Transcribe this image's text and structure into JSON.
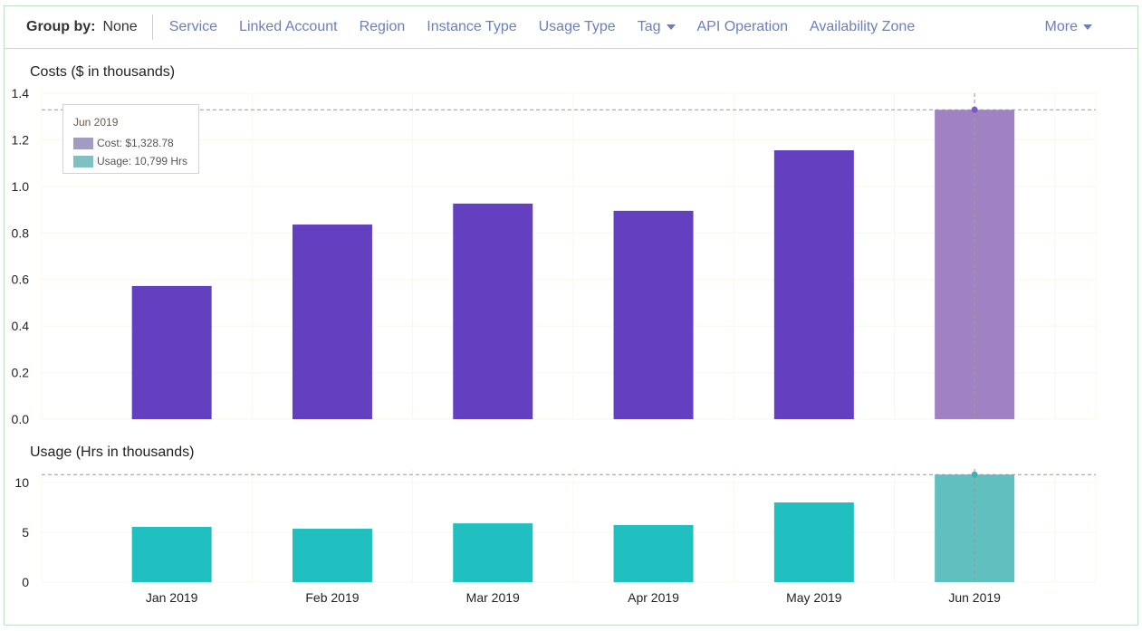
{
  "toolbar": {
    "group_by_label": "Group by:",
    "group_by_value": "None",
    "options": [
      "Service",
      "Linked Account",
      "Region",
      "Instance Type",
      "Usage Type",
      "Tag",
      "API Operation",
      "Availability Zone"
    ],
    "more": "More"
  },
  "tooltip": {
    "date": "Jun 2019",
    "cost": "Cost: $1,328.78",
    "usage": "Usage: 10,799 Hrs"
  },
  "colors": {
    "cost": "#6340c0",
    "cost_hover": "#a082c2",
    "usage": "#20c0c0",
    "usage_hover": "#60c0c0"
  },
  "chart_data": [
    {
      "type": "bar",
      "title": "Costs ($ in thousands)",
      "categories": [
        "Jan 2019",
        "Feb 2019",
        "Mar 2019",
        "Apr 2019",
        "May 2019",
        "Jun 2019"
      ],
      "values": [
        0.572,
        0.836,
        0.926,
        0.895,
        1.155,
        1.329
      ],
      "ylim": [
        0,
        1.4
      ],
      "yticks": [
        "0.0",
        "0.2",
        "0.4",
        "0.6",
        "0.8",
        "1.0",
        "1.2",
        "1.4"
      ],
      "highlighted": "Jun 2019"
    },
    {
      "type": "bar",
      "title": "Usage (Hrs in thousands)",
      "categories": [
        "Jan 2019",
        "Feb 2019",
        "Mar 2019",
        "Apr 2019",
        "May 2019",
        "Jun 2019"
      ],
      "values": [
        5.55,
        5.36,
        5.9,
        5.73,
        8.0,
        10.8
      ],
      "ylim": [
        0,
        11
      ],
      "yticks": [
        "0",
        "5",
        "10"
      ],
      "highlighted": "Jun 2019"
    }
  ]
}
